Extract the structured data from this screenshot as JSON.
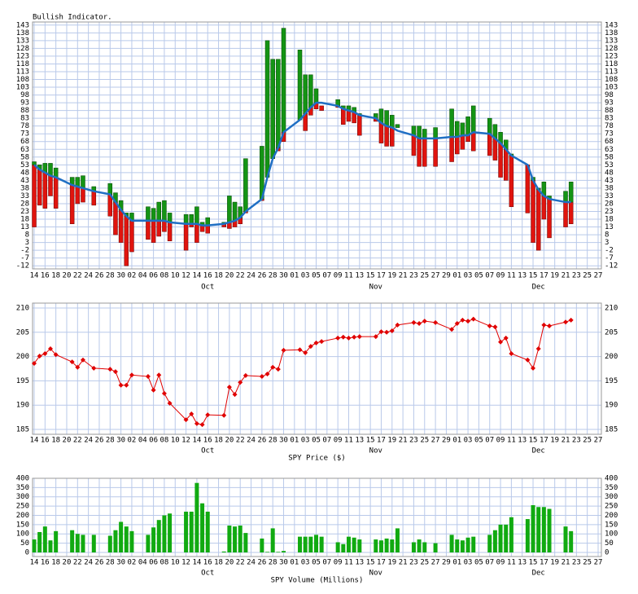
{
  "x_axis": {
    "x": [
      "Sep 14",
      "Sep 15",
      "Sep 16",
      "Sep 17",
      "Sep 18",
      "Sep 21",
      "Sep 22",
      "Sep 23",
      "Sep 25",
      "Sep 28",
      "Sep 29",
      "Sep 30",
      "Oct 1",
      "Oct 2",
      "Oct 5",
      "Oct 6",
      "Oct 7",
      "Oct 8",
      "Oct 9",
      "Oct 12",
      "Oct 13",
      "Oct 14",
      "Oct 15",
      "Oct 16",
      "Oct 19",
      "Oct 20",
      "Oct 21",
      "Oct 22",
      "Oct 23",
      "Oct 26",
      "Oct 27",
      "Oct 28",
      "Oct 29",
      "Oct 30",
      "Nov 2",
      "Nov 3",
      "Nov 4",
      "Nov 5",
      "Nov 6",
      "Nov 9",
      "Nov 10",
      "Nov 11",
      "Nov 12",
      "Nov 13",
      "Nov 16",
      "Nov 17",
      "Nov 18",
      "Nov 19",
      "Nov 20",
      "Nov 23",
      "Nov 24",
      "Nov 25",
      "Nov 27",
      "Nov 30",
      "Dec 1",
      "Dec 2",
      "Dec 3",
      "Dec 4",
      "Dec 7",
      "Dec 8",
      "Dec 9",
      "Dec 10",
      "Dec 11",
      "Dec 14",
      "Dec 15",
      "Dec 16",
      "Dec 17",
      "Dec 18",
      "Dec 21",
      "Dec 22"
    ],
    "xlim": [
      "Sep 14",
      "Dec 27"
    ],
    "xticks": [
      {
        "value": "Sep 14",
        "label": "14"
      },
      {
        "value": "Sep 16",
        "label": "16"
      },
      {
        "value": "Sep 18",
        "label": "18"
      },
      {
        "value": "Sep 20",
        "label": "20"
      },
      {
        "value": "Sep 22",
        "label": "22"
      },
      {
        "value": "Sep 24",
        "label": "24"
      },
      {
        "value": "Sep 26",
        "label": "26"
      },
      {
        "value": "Sep 28",
        "label": "28"
      },
      {
        "value": "Sep 30",
        "label": "30"
      },
      {
        "value": "Oct 2",
        "label": "02"
      },
      {
        "value": "Oct 4",
        "label": "04"
      },
      {
        "value": "Oct 6",
        "label": "06"
      },
      {
        "value": "Oct 8",
        "label": "08"
      },
      {
        "value": "Oct 10",
        "label": "10"
      },
      {
        "value": "Oct 12",
        "label": "12"
      },
      {
        "value": "Oct 14",
        "label": "14"
      },
      {
        "value": "Oct 16",
        "label": "16"
      },
      {
        "value": "Oct 18",
        "label": "18"
      },
      {
        "value": "Oct 20",
        "label": "20"
      },
      {
        "value": "Oct 22",
        "label": "22"
      },
      {
        "value": "Oct 24",
        "label": "24"
      },
      {
        "value": "Oct 26",
        "label": "26"
      },
      {
        "value": "Oct 28",
        "label": "28"
      },
      {
        "value": "Oct 30",
        "label": "30"
      },
      {
        "value": "Nov 1",
        "label": "01"
      },
      {
        "value": "Nov 3",
        "label": "03"
      },
      {
        "value": "Nov 5",
        "label": "05"
      },
      {
        "value": "Nov 7",
        "label": "07"
      },
      {
        "value": "Nov 9",
        "label": "09"
      },
      {
        "value": "Nov 11",
        "label": "11"
      },
      {
        "value": "Nov 13",
        "label": "13"
      },
      {
        "value": "Nov 15",
        "label": "15"
      },
      {
        "value": "Nov 17",
        "label": "17"
      },
      {
        "value": "Nov 19",
        "label": "19"
      },
      {
        "value": "Nov 21",
        "label": "21"
      },
      {
        "value": "Nov 23",
        "label": "23"
      },
      {
        "value": "Nov 25",
        "label": "25"
      },
      {
        "value": "Nov 27",
        "label": "27"
      },
      {
        "value": "Nov 29",
        "label": "29"
      },
      {
        "value": "Dec 1",
        "label": "01"
      },
      {
        "value": "Dec 3",
        "label": "03"
      },
      {
        "value": "Dec 5",
        "label": "05"
      },
      {
        "value": "Dec 7",
        "label": "07"
      },
      {
        "value": "Dec 9",
        "label": "09"
      },
      {
        "value": "Dec 11",
        "label": "11"
      },
      {
        "value": "Dec 13",
        "label": "13"
      },
      {
        "value": "Dec 15",
        "label": "15"
      },
      {
        "value": "Dec 17",
        "label": "17"
      },
      {
        "value": "Dec 19",
        "label": "19"
      },
      {
        "value": "Dec 21",
        "label": "21"
      },
      {
        "value": "Dec 23",
        "label": "23"
      },
      {
        "value": "Dec 25",
        "label": "25"
      },
      {
        "value": "Dec 27",
        "label": "27"
      }
    ],
    "month_ticks": [
      {
        "value": "Oct 16",
        "label": "Oct"
      },
      {
        "value": "Nov 16",
        "label": "Nov"
      },
      {
        "value": "Dec 16",
        "label": "Dec"
      }
    ]
  },
  "chart_data": [
    {
      "type": "range_bar",
      "title": "Bullish Indicator.",
      "low": [
        13,
        27,
        25,
        33,
        25,
        15,
        28,
        29,
        27,
        20,
        8,
        3,
        -12,
        -3,
        5,
        3,
        7,
        10,
        4,
        -2,
        13,
        3,
        10,
        9,
        13,
        12,
        13,
        15,
        22,
        30,
        45,
        57,
        62,
        68,
        82,
        75,
        85,
        89,
        88,
        90,
        79,
        81,
        80,
        72,
        81,
        67,
        65,
        65,
        77,
        59,
        52,
        52,
        52,
        55,
        60,
        63,
        68,
        62,
        59,
        56,
        45,
        43,
        26,
        22,
        3,
        -2,
        18,
        6,
        13,
        15
      ],
      "high": [
        55,
        53,
        54,
        54,
        51,
        45,
        45,
        46,
        39,
        41,
        35,
        30,
        22,
        22,
        26,
        25,
        29,
        30,
        22,
        21,
        21,
        26,
        16,
        19,
        16,
        33,
        29,
        26,
        57,
        65,
        133,
        121,
        121,
        141,
        127,
        111,
        111,
        102,
        91,
        95,
        91,
        91,
        90,
        86,
        86,
        89,
        88,
        85,
        79,
        78,
        78,
        76,
        77,
        89,
        81,
        80,
        84,
        91,
        83,
        79,
        74,
        69,
        60,
        53,
        45,
        38,
        42,
        33,
        36,
        42
      ],
      "average": [
        53,
        50,
        48,
        46,
        45,
        40,
        39,
        38,
        36,
        34,
        29,
        24,
        20,
        17,
        17,
        17,
        17,
        17,
        16,
        15,
        15,
        15,
        14,
        14,
        15,
        16,
        17,
        19,
        23,
        31,
        45,
        57,
        64,
        74,
        82,
        86,
        90,
        93,
        93,
        91,
        89,
        88,
        87,
        85,
        83,
        80,
        78,
        77,
        75,
        72,
        70,
        70,
        70,
        71,
        71,
        72,
        72,
        74,
        73,
        70,
        67,
        63,
        59,
        53,
        43,
        37,
        33,
        31,
        29,
        29
      ],
      "colors": {
        "above": "#149414",
        "below": "#e0140e",
        "average": "#1f6fc4"
      },
      "ylim": [
        -14,
        145
      ],
      "yticks": [
        -12,
        -7,
        -2,
        3,
        8,
        13,
        18,
        23,
        28,
        33,
        38,
        43,
        48,
        53,
        58,
        63,
        68,
        73,
        78,
        83,
        88,
        93,
        98,
        103,
        108,
        113,
        118,
        123,
        128,
        133,
        138,
        143
      ],
      "grid": true
    },
    {
      "type": "line",
      "xlabel": "SPY Price ($)",
      "values": [
        198.6,
        200.1,
        200.6,
        201.6,
        200.4,
        198.9,
        197.8,
        199.3,
        197.6,
        197.4,
        196.9,
        194.1,
        194.1,
        196.2,
        195.9,
        193.1,
        196.2,
        192.4,
        190.4,
        187.0,
        188.2,
        186.2,
        186.0,
        188.0,
        187.9,
        193.7,
        192.2,
        194.7,
        196.1,
        195.9,
        196.4,
        197.8,
        197.4,
        201.3,
        201.4,
        200.8,
        202.1,
        202.8,
        203.1,
        203.8,
        204.0,
        203.8,
        204.0,
        204.1,
        204.1,
        205.1,
        205.0,
        205.3,
        206.5,
        207.0,
        206.8,
        207.3,
        207.0,
        205.6,
        206.8,
        207.5,
        207.3,
        207.7,
        206.3,
        206.1,
        203.0,
        203.8,
        200.6,
        199.3,
        197.6,
        201.6,
        206.5,
        206.3,
        207.1,
        207.5
      ],
      "color": "#e00000",
      "marker": "diamond",
      "ylim": [
        184,
        211
      ],
      "yticks": [
        185,
        190,
        195,
        200,
        205,
        210
      ],
      "grid": true
    },
    {
      "type": "bar",
      "xlabel": "SPY Volume (Millions)",
      "values": [
        70,
        110,
        140,
        65,
        115,
        120,
        100,
        95,
        95,
        90,
        120,
        165,
        140,
        115,
        95,
        135,
        175,
        200,
        210,
        220,
        220,
        375,
        265,
        220,
        5,
        145,
        140,
        145,
        105,
        75,
        3,
        130,
        3,
        8,
        85,
        85,
        85,
        95,
        85,
        55,
        45,
        85,
        80,
        70,
        70,
        65,
        75,
        70,
        130,
        55,
        70,
        55,
        50,
        95,
        70,
        65,
        80,
        85,
        95,
        120,
        150,
        150,
        190,
        180,
        255,
        245,
        245,
        235,
        140,
        115
      ],
      "color": "#11aa11",
      "ylim": [
        -22,
        400
      ],
      "yticks": [
        0,
        50,
        100,
        150,
        200,
        250,
        300,
        350,
        400
      ],
      "grid": true
    }
  ]
}
